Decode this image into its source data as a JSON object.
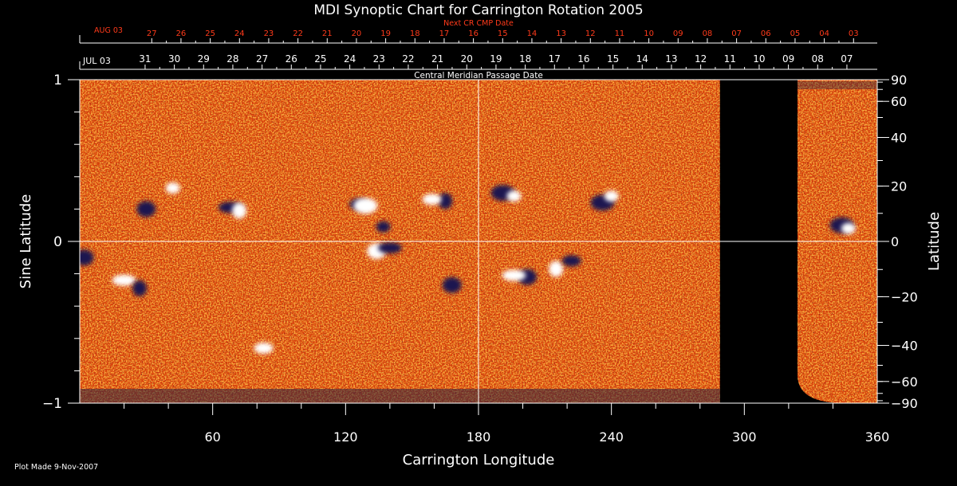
{
  "chart_data": {
    "type": "heatmap",
    "title": "MDI Synoptic Chart for Carrington Rotation 2005",
    "xlabel": "Carrington Longitude",
    "ylabel": "Sine Latitude",
    "ylabel_right": "Latitude",
    "xlim": [
      0,
      360
    ],
    "ylim": [
      -1,
      1
    ],
    "x_ticks": [
      60,
      120,
      180,
      240,
      300,
      360
    ],
    "y_ticks": [
      {
        "value": 1,
        "label": "1"
      },
      {
        "value": 0,
        "label": "0"
      },
      {
        "value": -1,
        "label": "−1"
      }
    ],
    "right_ticks": [
      {
        "lat": 90,
        "label": "90"
      },
      {
        "lat": 60,
        "label": "60"
      },
      {
        "lat": 40,
        "label": "40"
      },
      {
        "lat": 20,
        "label": "20"
      },
      {
        "lat": 0,
        "label": "0"
      },
      {
        "lat": -20,
        "label": "−20"
      },
      {
        "lat": -40,
        "label": "−40"
      },
      {
        "lat": -60,
        "label": "−60"
      },
      {
        "lat": -90,
        "label": "−90"
      }
    ],
    "grid": "lines at longitude 180 and sine latitude 0",
    "data_gap_longitude": [
      289,
      324
    ],
    "cmp_axis": {
      "title": "Central Meridian Passage Date",
      "first_label": "JUL 03",
      "dates": [
        {
          "lon": 29.5,
          "label": "31"
        },
        {
          "lon": 42.7,
          "label": "30"
        },
        {
          "lon": 55.9,
          "label": "29"
        },
        {
          "lon": 69.1,
          "label": "28"
        },
        {
          "lon": 82.3,
          "label": "27"
        },
        {
          "lon": 95.5,
          "label": "26"
        },
        {
          "lon": 108.7,
          "label": "25"
        },
        {
          "lon": 121.9,
          "label": "24"
        },
        {
          "lon": 135.1,
          "label": "23"
        },
        {
          "lon": 148.3,
          "label": "22"
        },
        {
          "lon": 161.5,
          "label": "21"
        },
        {
          "lon": 174.7,
          "label": "20"
        },
        {
          "lon": 187.9,
          "label": "19"
        },
        {
          "lon": 201.1,
          "label": "18"
        },
        {
          "lon": 214.3,
          "label": "17"
        },
        {
          "lon": 227.5,
          "label": "16"
        },
        {
          "lon": 240.7,
          "label": "15"
        },
        {
          "lon": 253.9,
          "label": "14"
        },
        {
          "lon": 267.1,
          "label": "13"
        },
        {
          "lon": 280.3,
          "label": "12"
        },
        {
          "lon": 293.5,
          "label": "11"
        },
        {
          "lon": 306.7,
          "label": "10"
        },
        {
          "lon": 319.9,
          "label": "09"
        },
        {
          "lon": 333.1,
          "label": "08"
        },
        {
          "lon": 346.3,
          "label": "07"
        }
      ]
    },
    "next_cr_axis": {
      "title": "Next CR CMP Date",
      "first_label": "AUG 03",
      "dates": [
        {
          "lon": 32.5,
          "label": "27"
        },
        {
          "lon": 45.7,
          "label": "26"
        },
        {
          "lon": 58.9,
          "label": "25"
        },
        {
          "lon": 72.1,
          "label": "24"
        },
        {
          "lon": 85.3,
          "label": "23"
        },
        {
          "lon": 98.5,
          "label": "22"
        },
        {
          "lon": 111.7,
          "label": "21"
        },
        {
          "lon": 124.9,
          "label": "20"
        },
        {
          "lon": 138.1,
          "label": "19"
        },
        {
          "lon": 151.3,
          "label": "18"
        },
        {
          "lon": 164.5,
          "label": "17"
        },
        {
          "lon": 177.7,
          "label": "16"
        },
        {
          "lon": 190.9,
          "label": "15"
        },
        {
          "lon": 204.1,
          "label": "14"
        },
        {
          "lon": 217.3,
          "label": "13"
        },
        {
          "lon": 230.5,
          "label": "12"
        },
        {
          "lon": 243.7,
          "label": "11"
        },
        {
          "lon": 256.9,
          "label": "10"
        },
        {
          "lon": 270.1,
          "label": "09"
        },
        {
          "lon": 283.3,
          "label": "08"
        },
        {
          "lon": 296.5,
          "label": "07"
        },
        {
          "lon": 309.7,
          "label": "06"
        },
        {
          "lon": 322.9,
          "label": "05"
        },
        {
          "lon": 336.1,
          "label": "04"
        },
        {
          "lon": 349.3,
          "label": "03"
        }
      ]
    },
    "features": [
      {
        "lon": 42,
        "sinlat": 0.33,
        "polarity": "positive"
      },
      {
        "lon": 30,
        "sinlat": 0.2,
        "polarity": "negative"
      },
      {
        "lon": 68,
        "sinlat": 0.21,
        "polarity": "negative"
      },
      {
        "lon": 72,
        "sinlat": 0.19,
        "polarity": "positive"
      },
      {
        "lon": 126,
        "sinlat": 0.23,
        "polarity": "negative"
      },
      {
        "lon": 129,
        "sinlat": 0.22,
        "polarity": "positive"
      },
      {
        "lon": 137,
        "sinlat": 0.09,
        "polarity": "negative"
      },
      {
        "lon": 134,
        "sinlat": -0.06,
        "polarity": "positive"
      },
      {
        "lon": 140,
        "sinlat": -0.04,
        "polarity": "negative"
      },
      {
        "lon": 165,
        "sinlat": 0.25,
        "polarity": "negative"
      },
      {
        "lon": 159,
        "sinlat": 0.26,
        "polarity": "positive"
      },
      {
        "lon": 191,
        "sinlat": 0.3,
        "polarity": "negative"
      },
      {
        "lon": 196,
        "sinlat": 0.28,
        "polarity": "positive"
      },
      {
        "lon": 202,
        "sinlat": -0.22,
        "polarity": "negative"
      },
      {
        "lon": 196,
        "sinlat": -0.21,
        "polarity": "positive"
      },
      {
        "lon": 215,
        "sinlat": -0.17,
        "polarity": "positive"
      },
      {
        "lon": 222,
        "sinlat": -0.12,
        "polarity": "negative"
      },
      {
        "lon": 236,
        "sinlat": 0.24,
        "polarity": "negative"
      },
      {
        "lon": 240,
        "sinlat": 0.28,
        "polarity": "positive"
      },
      {
        "lon": 168,
        "sinlat": -0.27,
        "polarity": "negative"
      },
      {
        "lon": 20,
        "sinlat": -0.24,
        "polarity": "positive"
      },
      {
        "lon": 27,
        "sinlat": -0.29,
        "polarity": "negative"
      },
      {
        "lon": 83,
        "sinlat": -0.66,
        "polarity": "positive"
      },
      {
        "lon": 344,
        "sinlat": 0.1,
        "polarity": "negative"
      },
      {
        "lon": 347,
        "sinlat": 0.08,
        "polarity": "positive"
      },
      {
        "lon": 2,
        "sinlat": -0.1,
        "polarity": "negative"
      }
    ],
    "colors": {
      "background": "#000000",
      "field": "#d94010",
      "positive": "#ffffff",
      "negative": "#1a1850",
      "axis": "#ffffff",
      "secondary_text": "#ff3a1a"
    }
  },
  "footer": {
    "plot_made": "Plot Made  9-Nov-2007"
  }
}
